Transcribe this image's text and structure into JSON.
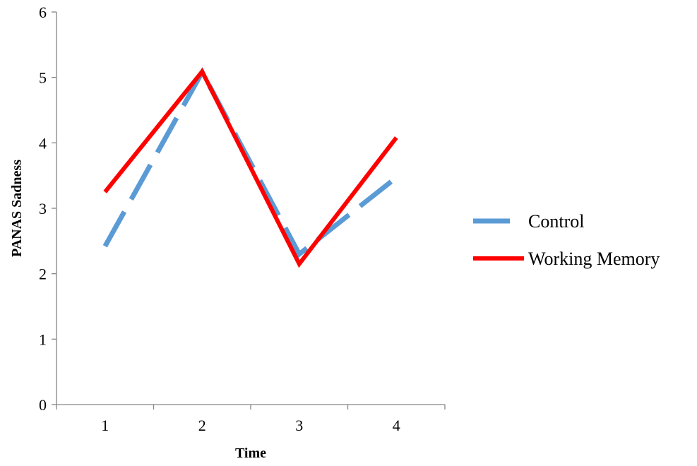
{
  "chart_data": {
    "type": "line",
    "title": "",
    "xlabel": "Time",
    "ylabel": "PANAS Sadness",
    "categories": [
      "1",
      "2",
      "3",
      "4"
    ],
    "ylim": [
      0,
      6
    ],
    "yticks": [
      "0",
      "1",
      "2",
      "3",
      "4",
      "5",
      "6"
    ],
    "grid": false,
    "legend_position": "right",
    "series": [
      {
        "name": "Control",
        "values": [
          2.42,
          5.08,
          2.3,
          3.47
        ],
        "color": "#5B9BD5",
        "style": "dashed"
      },
      {
        "name": "Working Memory",
        "values": [
          3.25,
          5.09,
          2.15,
          4.08
        ],
        "color": "#FF0000",
        "style": "solid"
      }
    ]
  }
}
